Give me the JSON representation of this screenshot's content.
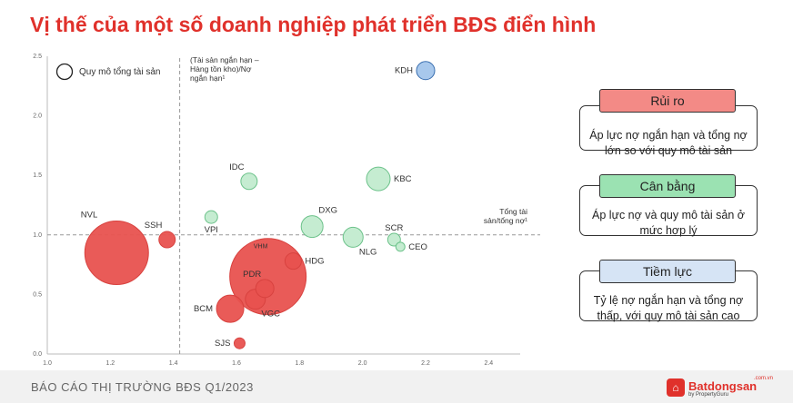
{
  "page": {
    "title": "Vị thế của một số doanh nghiệp phát triển BĐS điển hình"
  },
  "chart_data": {
    "type": "scatter",
    "xlim": [
      1.0,
      2.5
    ],
    "ylim": [
      0.0,
      2.5
    ],
    "x_ticks": [
      "1.0",
      "1.2",
      "1.4",
      "1.6",
      "1.8",
      "2.0",
      "2.2",
      "2.4"
    ],
    "y_ticks": [
      "0.0",
      "0.5",
      "1.0",
      "1.5",
      "2.0",
      "2.5"
    ],
    "ref_x": 1.42,
    "ref_y": 1.0,
    "annotations": {
      "vertical": "(Tài sản ngắn hạn – Hàng tồn kho)/Nợ ngắn hạn¹",
      "horizontal": "Tổng tài sản/tổng nợ¹"
    },
    "legend": {
      "label": "Quy mô tổng tài sản",
      "placement": "top-left"
    },
    "colors": {
      "red": "#e8524f",
      "green": "#c5ecd1",
      "blue": "#a8c8ec",
      "red_stroke": "#d8423f",
      "green_stroke": "#6cc28a",
      "blue_stroke": "#3a6fb0"
    },
    "points": [
      {
        "name": "KDH",
        "x": 2.2,
        "y": 2.38,
        "size": 10,
        "color": "blue",
        "label_pos": "left"
      },
      {
        "name": "IDC",
        "x": 1.64,
        "y": 1.45,
        "size": 9,
        "color": "green",
        "label_pos": "top-left"
      },
      {
        "name": "KBC",
        "x": 2.05,
        "y": 1.47,
        "size": 13,
        "color": "green",
        "label_pos": "right"
      },
      {
        "name": "VPI",
        "x": 1.52,
        "y": 1.15,
        "size": 7,
        "color": "green",
        "label_pos": "bottom"
      },
      {
        "name": "DXG",
        "x": 1.84,
        "y": 1.07,
        "size": 12,
        "color": "green",
        "label_pos": "top-right"
      },
      {
        "name": "NLG",
        "x": 1.97,
        "y": 0.98,
        "size": 11,
        "color": "green",
        "label_pos": "bottom-right"
      },
      {
        "name": "SCR",
        "x": 2.1,
        "y": 0.96,
        "size": 7,
        "color": "green",
        "label_pos": "top"
      },
      {
        "name": "CEO",
        "x": 2.12,
        "y": 0.9,
        "size": 5,
        "color": "green",
        "label_pos": "right"
      },
      {
        "name": "NVL",
        "x": 1.22,
        "y": 0.85,
        "size": 35,
        "color": "red",
        "label_pos": "top-left"
      },
      {
        "name": "SSH",
        "x": 1.38,
        "y": 0.96,
        "size": 9,
        "color": "red",
        "label_pos": "top-left"
      },
      {
        "name": "VHM",
        "x": 1.7,
        "y": 0.65,
        "size": 42,
        "color": "red",
        "label_pos": "top"
      },
      {
        "name": "HDG",
        "x": 1.78,
        "y": 0.78,
        "size": 9,
        "color": "red",
        "label_pos": "right"
      },
      {
        "name": "PDR",
        "x": 1.69,
        "y": 0.55,
        "size": 10,
        "color": "red",
        "label_pos": "top-left"
      },
      {
        "name": "VGC",
        "x": 1.66,
        "y": 0.46,
        "size": 11,
        "color": "red",
        "label_pos": "bottom-right"
      },
      {
        "name": "BCM",
        "x": 1.58,
        "y": 0.38,
        "size": 15,
        "color": "red",
        "label_pos": "left"
      },
      {
        "name": "SJS",
        "x": 1.61,
        "y": 0.09,
        "size": 6,
        "color": "red",
        "label_pos": "left"
      }
    ]
  },
  "panels": [
    {
      "heading": "Rủi ro",
      "color": "#f38a86",
      "description_lines": [
        "Áp lực nợ ngắn hạn và tổng nợ",
        "lớn so với quy mô tài sản"
      ]
    },
    {
      "heading": "Cân bằng",
      "color": "#9be2b2",
      "description_lines": [
        "Áp lực nợ và quy mô tài sản ở",
        "mức hợp lý"
      ]
    },
    {
      "heading": "Tiềm lực",
      "color": "#d6e4f5",
      "description_lines": [
        "Tỷ lệ nợ ngắn hạn và tổng nợ",
        "thấp, với quy mô tài sản cao"
      ]
    }
  ],
  "footer": {
    "report": "BÁO CÁO THỊ TRƯỜNG BĐS Q1/2023",
    "logo_name": "Batdongsan",
    "logo_domain": ".com.vn",
    "logo_sub": "by PropertyGuru",
    "logo_icon": "house-icon"
  }
}
